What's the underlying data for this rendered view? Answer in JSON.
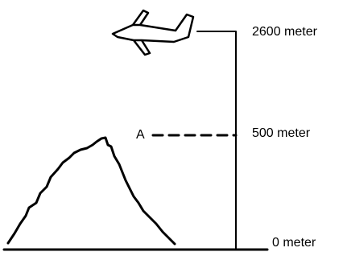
{
  "labels": {
    "top": "2600 meter",
    "middle": "500 meter",
    "bottom": "0 meter",
    "point": "A"
  }
}
